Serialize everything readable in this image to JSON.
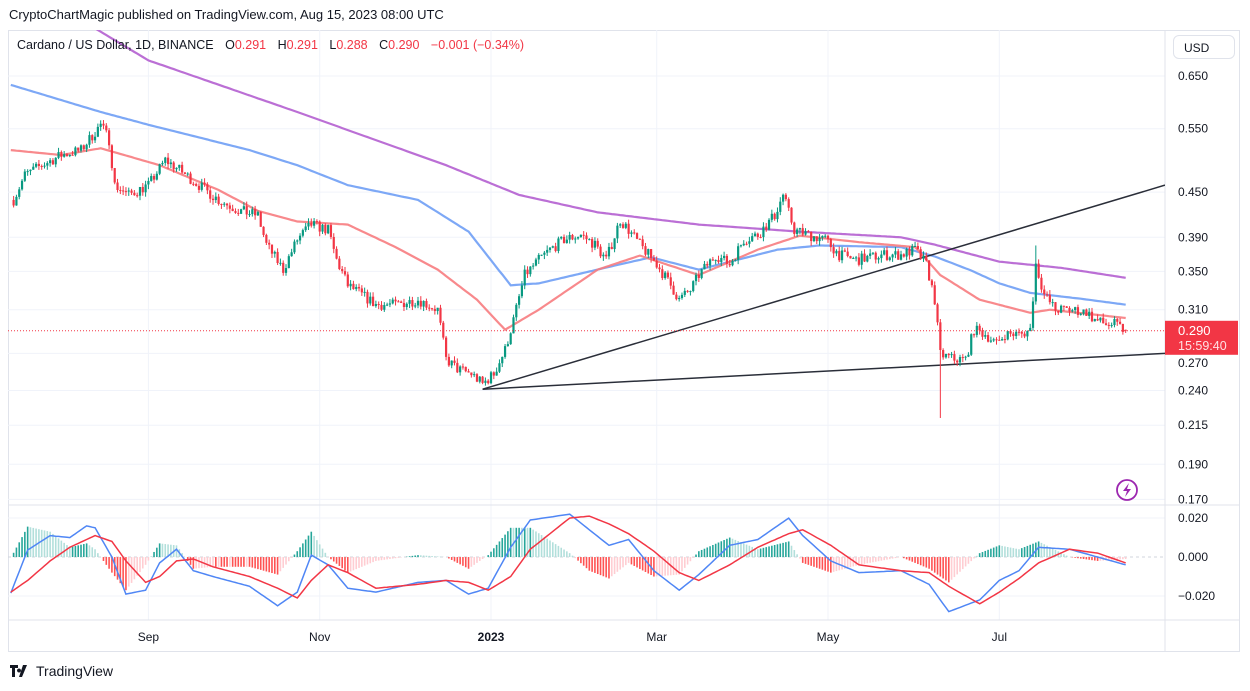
{
  "header": {
    "publisher_line": "CryptoChartMagic published on TradingView.com, Aug 15, 2023 08:00 UTC"
  },
  "legend": {
    "symbol": "Cardano / US Dollar, 1D, BINANCE",
    "open_label": "O",
    "open": "0.291",
    "high_label": "H",
    "high": "0.291",
    "low_label": "L",
    "low": "0.288",
    "close_label": "C",
    "close": "0.290",
    "change": "−0.001 (−0.34%)"
  },
  "price_scale": {
    "currency": "USD",
    "last_price": "0.290",
    "countdown": "15:59:40"
  },
  "branding": {
    "logo_text": "TradingView"
  },
  "icons": {
    "alert": "lightning-icon",
    "logo": "tradingview-logo-icon"
  },
  "colors": {
    "up": "#089981",
    "down": "#f23645",
    "ma_purple": "#b45fd0",
    "ma_blue": "#6f9ef5",
    "ma_red": "#f77c80",
    "macd": "#4f86f5",
    "signal": "#f23645",
    "trendline": "#2a2e39",
    "grid": "#f0f3fa"
  },
  "chart_data": [
    {
      "type": "candlestick",
      "scale": "log",
      "x_range": [
        "2022-07-13",
        "2023-08-29"
      ],
      "ylim": [
        0.167,
        0.752
      ],
      "y_ticks": [
        "0.650",
        "0.550",
        "0.450",
        "0.390",
        "0.350",
        "0.310",
        "0.270",
        "0.240",
        "0.215",
        "0.190",
        "0.170"
      ],
      "x_ticks": [
        {
          "label": "Sep",
          "date": "2022-09-01"
        },
        {
          "label": "Nov",
          "date": "2022-11-01"
        },
        {
          "label": "2023",
          "date": "2023-01-01"
        },
        {
          "label": "Mar",
          "date": "2023-03-01"
        },
        {
          "label": "May",
          "date": "2023-05-01"
        },
        {
          "label": "Jul",
          "date": "2023-07-01"
        }
      ],
      "grid": true,
      "closes": [
        [
          "2022-07-15",
          0.439
        ],
        [
          "2022-07-19",
          0.475
        ],
        [
          "2022-07-25",
          0.49
        ],
        [
          "2022-08-01",
          0.506
        ],
        [
          "2022-08-08",
          0.514
        ],
        [
          "2022-08-15",
          0.557
        ],
        [
          "2022-08-18",
          0.531
        ],
        [
          "2022-08-20",
          0.46
        ],
        [
          "2022-08-25",
          0.446
        ],
        [
          "2022-09-01",
          0.46
        ],
        [
          "2022-09-07",
          0.498
        ],
        [
          "2022-09-12",
          0.483
        ],
        [
          "2022-09-19",
          0.46
        ],
        [
          "2022-09-26",
          0.439
        ],
        [
          "2022-10-03",
          0.425
        ],
        [
          "2022-10-10",
          0.418
        ],
        [
          "2022-10-13",
          0.381
        ],
        [
          "2022-10-19",
          0.352
        ],
        [
          "2022-10-24",
          0.387
        ],
        [
          "2022-10-29",
          0.406
        ],
        [
          "2022-11-04",
          0.399
        ],
        [
          "2022-11-07",
          0.363
        ],
        [
          "2022-11-11",
          0.335
        ],
        [
          "2022-11-16",
          0.325
        ],
        [
          "2022-11-21",
          0.315
        ],
        [
          "2022-11-28",
          0.315
        ],
        [
          "2022-12-06",
          0.32
        ],
        [
          "2022-12-13",
          0.31
        ],
        [
          "2022-12-16",
          0.265
        ],
        [
          "2022-12-20",
          0.257
        ],
        [
          "2022-12-25",
          0.253
        ],
        [
          "2022-12-29",
          0.245
        ],
        [
          "2023-01-02",
          0.253
        ],
        [
          "2023-01-06",
          0.273
        ],
        [
          "2023-01-09",
          0.3
        ],
        [
          "2023-01-13",
          0.346
        ],
        [
          "2023-01-18",
          0.363
        ],
        [
          "2023-01-22",
          0.375
        ],
        [
          "2023-01-27",
          0.387
        ],
        [
          "2023-02-02",
          0.393
        ],
        [
          "2023-02-07",
          0.381
        ],
        [
          "2023-02-11",
          0.363
        ],
        [
          "2023-02-16",
          0.412
        ],
        [
          "2023-02-19",
          0.399
        ],
        [
          "2023-02-23",
          0.381
        ],
        [
          "2023-03-01",
          0.358
        ],
        [
          "2023-03-06",
          0.335
        ],
        [
          "2023-03-09",
          0.32
        ],
        [
          "2023-03-13",
          0.33
        ],
        [
          "2023-03-16",
          0.346
        ],
        [
          "2023-03-22",
          0.369
        ],
        [
          "2023-03-27",
          0.358
        ],
        [
          "2023-04-01",
          0.387
        ],
        [
          "2023-04-06",
          0.393
        ],
        [
          "2023-04-12",
          0.418
        ],
        [
          "2023-04-15",
          0.446
        ],
        [
          "2023-04-19",
          0.399
        ],
        [
          "2023-04-24",
          0.393
        ],
        [
          "2023-04-30",
          0.387
        ],
        [
          "2023-05-05",
          0.369
        ],
        [
          "2023-05-11",
          0.363
        ],
        [
          "2023-05-16",
          0.366
        ],
        [
          "2023-05-21",
          0.369
        ],
        [
          "2023-05-27",
          0.369
        ],
        [
          "2023-06-01",
          0.375
        ],
        [
          "2023-06-05",
          0.358
        ],
        [
          "2023-06-08",
          0.32
        ],
        [
          "2023-06-10",
          0.269
        ],
        [
          "2023-06-15",
          0.265
        ],
        [
          "2023-06-19",
          0.265
        ],
        [
          "2023-06-22",
          0.291
        ],
        [
          "2023-06-26",
          0.287
        ],
        [
          "2023-06-30",
          0.278
        ],
        [
          "2023-07-03",
          0.287
        ],
        [
          "2023-07-09",
          0.287
        ],
        [
          "2023-07-12",
          0.291
        ],
        [
          "2023-07-14",
          0.358
        ],
        [
          "2023-07-17",
          0.325
        ],
        [
          "2023-07-21",
          0.31
        ],
        [
          "2023-07-26",
          0.31
        ],
        [
          "2023-08-01",
          0.308
        ],
        [
          "2023-08-04",
          0.3
        ],
        [
          "2023-08-08",
          0.296
        ],
        [
          "2023-08-11",
          0.296
        ],
        [
          "2023-08-15",
          0.29
        ]
      ],
      "last_candle": {
        "date": "2023-08-15",
        "open": 0.291,
        "high": 0.291,
        "low": 0.288,
        "close": 0.29
      },
      "notable_wicks": [
        {
          "date": "2023-06-10",
          "low": 0.22
        },
        {
          "date": "2023-07-14",
          "high": 0.38
        }
      ],
      "moving_averages": [
        {
          "color": "#b45fd0",
          "points": [
            [
              "2022-08-12",
              0.76
            ],
            [
              "2022-09-01",
              0.683
            ],
            [
              "2022-10-24",
              0.58
            ],
            [
              "2022-12-16",
              0.49
            ],
            [
              "2023-01-11",
              0.446
            ],
            [
              "2023-02-08",
              0.422
            ],
            [
              "2023-03-16",
              0.406
            ],
            [
              "2023-04-21",
              0.397
            ],
            [
              "2023-05-27",
              0.39
            ],
            [
              "2023-06-08",
              0.381
            ],
            [
              "2023-07-01",
              0.361
            ],
            [
              "2023-07-23",
              0.354
            ],
            [
              "2023-08-15",
              0.343
            ]
          ]
        },
        {
          "color": "#6f9ef5",
          "points": [
            [
              "2022-07-14",
              0.632
            ],
            [
              "2022-08-15",
              0.58
            ],
            [
              "2022-09-01",
              0.557
            ],
            [
              "2022-10-07",
              0.514
            ],
            [
              "2022-10-24",
              0.49
            ],
            [
              "2022-11-11",
              0.46
            ],
            [
              "2022-12-06",
              0.439
            ],
            [
              "2022-12-24",
              0.397
            ],
            [
              "2023-01-08",
              0.335
            ],
            [
              "2023-01-18",
              0.337
            ],
            [
              "2023-02-16",
              0.358
            ],
            [
              "2023-02-27",
              0.366
            ],
            [
              "2023-03-16",
              0.352
            ],
            [
              "2023-04-13",
              0.375
            ],
            [
              "2023-04-28",
              0.38
            ],
            [
              "2023-05-27",
              0.378
            ],
            [
              "2023-06-08",
              0.367
            ],
            [
              "2023-06-21",
              0.351
            ],
            [
              "2023-07-01",
              0.337
            ],
            [
              "2023-07-12",
              0.327
            ],
            [
              "2023-07-30",
              0.321
            ],
            [
              "2023-08-15",
              0.315
            ]
          ]
        },
        {
          "color": "#f77c80",
          "points": [
            [
              "2022-07-14",
              0.514
            ],
            [
              "2022-08-01",
              0.506
            ],
            [
              "2022-08-15",
              0.517
            ],
            [
              "2022-09-05",
              0.49
            ],
            [
              "2022-09-26",
              0.453
            ],
            [
              "2022-10-10",
              0.424
            ],
            [
              "2022-10-24",
              0.41
            ],
            [
              "2022-11-11",
              0.406
            ],
            [
              "2022-11-28",
              0.378
            ],
            [
              "2022-12-13",
              0.352
            ],
            [
              "2022-12-27",
              0.32
            ],
            [
              "2023-01-06",
              0.291
            ],
            [
              "2023-01-18",
              0.31
            ],
            [
              "2023-02-08",
              0.352
            ],
            [
              "2023-02-23",
              0.368
            ],
            [
              "2023-03-16",
              0.346
            ],
            [
              "2023-04-06",
              0.375
            ],
            [
              "2023-04-21",
              0.392
            ],
            [
              "2023-05-12",
              0.384
            ],
            [
              "2023-06-01",
              0.378
            ],
            [
              "2023-06-10",
              0.346
            ],
            [
              "2023-06-24",
              0.32
            ],
            [
              "2023-07-12",
              0.307
            ],
            [
              "2023-07-19",
              0.31
            ],
            [
              "2023-08-15",
              0.302
            ]
          ]
        }
      ],
      "trendlines": [
        {
          "from": [
            "2022-12-29",
            0.241
          ],
          "to": [
            "2023-08-29",
            0.46
          ]
        },
        {
          "from": [
            "2022-12-29",
            0.241
          ],
          "to": [
            "2023-08-29",
            0.27
          ]
        }
      ],
      "last_price_line": 0.29
    },
    {
      "type": "macd",
      "ylim": [
        -0.0323,
        0.0267
      ],
      "y_ticks": [
        "0.020",
        "0.000",
        "−0.020"
      ],
      "y_tick_values": [
        0.02,
        0,
        -0.02
      ],
      "dates": [
        "2022-07-14",
        "2022-07-20",
        "2022-07-28",
        "2022-08-04",
        "2022-08-10",
        "2022-08-13",
        "2022-08-19",
        "2022-08-24",
        "2022-08-31",
        "2022-09-05",
        "2022-09-11",
        "2022-09-17",
        "2022-09-24",
        "2022-10-07",
        "2022-10-17",
        "2022-10-24",
        "2022-10-29",
        "2022-11-04",
        "2022-11-11",
        "2022-11-21",
        "2022-12-06",
        "2022-12-16",
        "2022-12-24",
        "2022-12-31",
        "2023-01-08",
        "2023-01-15",
        "2023-01-29",
        "2023-02-05",
        "2023-02-12",
        "2023-02-19",
        "2023-02-28",
        "2023-03-09",
        "2023-03-16",
        "2023-03-27",
        "2023-04-06",
        "2023-04-17",
        "2023-04-22",
        "2023-05-02",
        "2023-05-12",
        "2023-05-27",
        "2023-06-06",
        "2023-06-13",
        "2023-06-24",
        "2023-07-01",
        "2023-07-08",
        "2023-07-15",
        "2023-07-26",
        "2023-08-05",
        "2023-08-15"
      ],
      "macd": [
        -0.0185,
        0.0036,
        0.011,
        0.01,
        0.016,
        0.015,
        0.0,
        -0.019,
        -0.017,
        -0.003,
        0.004,
        -0.007,
        -0.01,
        -0.015,
        -0.025,
        -0.018,
        0.001,
        -0.004,
        -0.016,
        -0.018,
        -0.013,
        -0.012,
        -0.019,
        -0.016,
        0.005,
        0.019,
        0.022,
        0.014,
        0.006,
        0.009,
        -0.007,
        -0.017,
        -0.009,
        0.006,
        0.009,
        0.02,
        0.011,
        -0.002,
        -0.008,
        -0.007,
        -0.014,
        -0.028,
        -0.022,
        -0.012,
        -0.007,
        0.005,
        0.004,
        0.0,
        -0.004
      ],
      "signal": [
        -0.018,
        -0.012,
        -0.002,
        0.005,
        0.009,
        0.011,
        0.008,
        -0.002,
        -0.013,
        -0.01,
        -0.002,
        -0.001,
        -0.005,
        -0.01,
        -0.016,
        -0.021,
        -0.012,
        -0.004,
        -0.008,
        -0.016,
        -0.014,
        -0.012,
        -0.013,
        -0.017,
        -0.01,
        0.004,
        0.02,
        0.021,
        0.017,
        0.012,
        0.003,
        -0.008,
        -0.012,
        -0.004,
        0.005,
        0.012,
        0.014,
        0.006,
        -0.004,
        -0.007,
        -0.008,
        -0.015,
        -0.024,
        -0.018,
        -0.011,
        -0.003,
        0.004,
        0.002,
        -0.003
      ]
    }
  ]
}
